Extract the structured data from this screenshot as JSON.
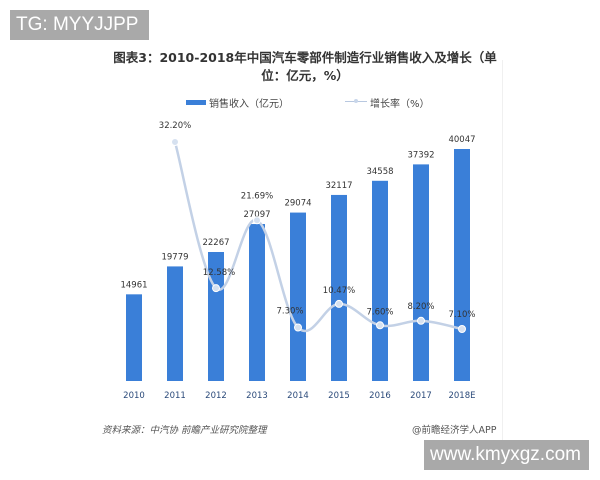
{
  "watermark_top": "TG: MYYJJPP",
  "watermark_bottom": "www.kmyxgz.com",
  "chart_data": {
    "type": "bar",
    "title": "图表3：2010-2018年中国汽车零部件制造行业销售收入及增长（单位：亿元，%）",
    "categories": [
      "2010",
      "2011",
      "2012",
      "2013",
      "2014",
      "2015",
      "2016",
      "2017",
      "2018E"
    ],
    "series": [
      {
        "name": "销售收入（亿元）",
        "type": "bar",
        "color": "#3a7fd8",
        "values": [
          14961,
          19779,
          22267,
          27097,
          29074,
          32117,
          34558,
          37392,
          40047
        ],
        "labels": [
          "14961",
          "19779",
          "22267",
          "27097",
          "29074",
          "32117",
          "34558",
          "37392",
          "40047"
        ]
      },
      {
        "name": "增长率（%）",
        "type": "line",
        "color": "#b8c8e0",
        "values": [
          null,
          32.2,
          12.58,
          21.69,
          7.3,
          10.47,
          7.6,
          8.2,
          7.1
        ],
        "labels": [
          "",
          "32.20%",
          "12.58%",
          "21.69%",
          "7.30%",
          "10.47%",
          "7.60%",
          "8.20%",
          "7.10%"
        ]
      }
    ],
    "xlabel": "",
    "ylabel": "",
    "grid": false,
    "legend_position": "top"
  },
  "title": {
    "line1": "图表3：2010-2018年中国汽车零部件制造行业销售收入及增长（单",
    "line2": "位：亿元，%）"
  },
  "legend": {
    "bar_label": "销售收入（亿元）",
    "line_label": "增长率（%）"
  },
  "footer": {
    "source": "资料来源：中汽协  前瞻产业研究院整理",
    "credit": "@前瞻经济学人APP"
  }
}
